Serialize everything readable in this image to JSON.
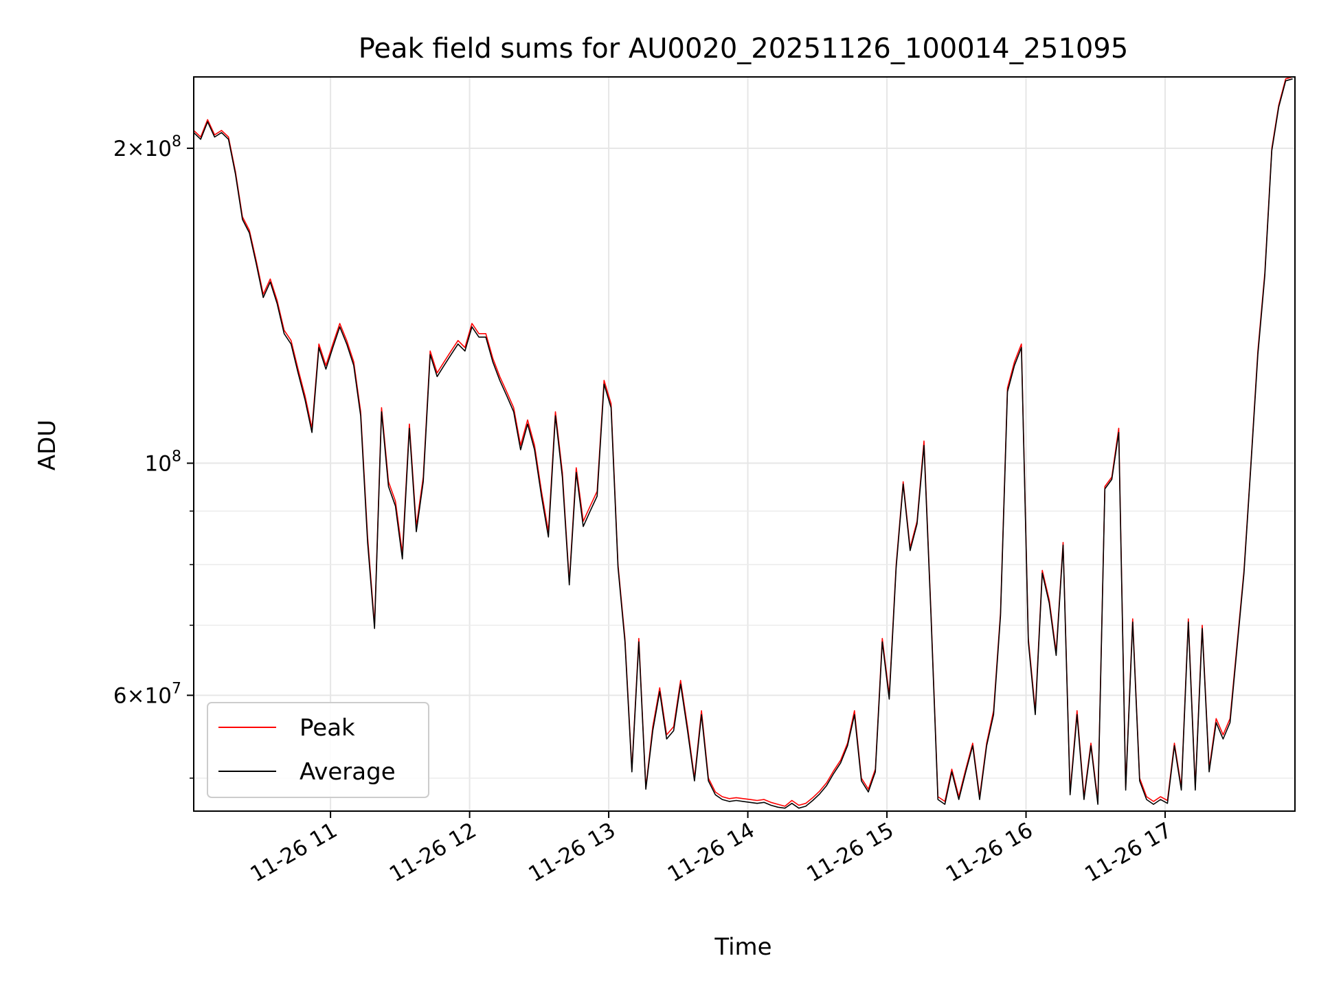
{
  "chart_data": {
    "type": "line",
    "title": "Peak field sums for AU0020_20251126_100014_251095",
    "xlabel": "Time",
    "ylabel": "ADU",
    "y_scale": "log",
    "grid": true,
    "legend_position": "lower-left",
    "xlim": [
      "2025-11-26 10:01",
      "2025-11-26 17:56"
    ],
    "ylim": [
      46500000,
      234000000
    ],
    "x_ticks": [
      {
        "value": "2025-11-26 11:00",
        "label": "11-26 11"
      },
      {
        "value": "2025-11-26 12:00",
        "label": "11-26 12"
      },
      {
        "value": "2025-11-26 13:00",
        "label": "11-26 13"
      },
      {
        "value": "2025-11-26 14:00",
        "label": "11-26 14"
      },
      {
        "value": "2025-11-26 15:00",
        "label": "11-26 15"
      },
      {
        "value": "2025-11-26 16:00",
        "label": "11-26 16"
      },
      {
        "value": "2025-11-26 17:00",
        "label": "11-26 17"
      }
    ],
    "y_major_ticks": [
      {
        "value": 200000000,
        "mantissa": "2",
        "exponent": "8"
      },
      {
        "value": 100000000,
        "mantissa": "",
        "exponent": "8"
      },
      {
        "value": 60000000,
        "mantissa": "6",
        "exponent": "7"
      }
    ],
    "y_minor_ticks": [
      50000000,
      70000000,
      80000000,
      90000000
    ],
    "times": [
      "2025-11-26 10:01",
      "2025-11-26 10:04",
      "2025-11-26 10:07",
      "2025-11-26 10:10",
      "2025-11-26 10:13",
      "2025-11-26 10:16",
      "2025-11-26 10:19",
      "2025-11-26 10:22",
      "2025-11-26 10:25",
      "2025-11-26 10:28",
      "2025-11-26 10:31",
      "2025-11-26 10:34",
      "2025-11-26 10:37",
      "2025-11-26 10:40",
      "2025-11-26 10:43",
      "2025-11-26 10:46",
      "2025-11-26 10:49",
      "2025-11-26 10:52",
      "2025-11-26 10:55",
      "2025-11-26 10:58",
      "2025-11-26 11:01",
      "2025-11-26 11:04",
      "2025-11-26 11:07",
      "2025-11-26 11:10",
      "2025-11-26 11:13",
      "2025-11-26 11:16",
      "2025-11-26 11:19",
      "2025-11-26 11:22",
      "2025-11-26 11:25",
      "2025-11-26 11:28",
      "2025-11-26 11:31",
      "2025-11-26 11:34",
      "2025-11-26 11:37",
      "2025-11-26 11:40",
      "2025-11-26 11:43",
      "2025-11-26 11:46",
      "2025-11-26 11:49",
      "2025-11-26 11:52",
      "2025-11-26 11:55",
      "2025-11-26 11:58",
      "2025-11-26 12:01",
      "2025-11-26 12:04",
      "2025-11-26 12:07",
      "2025-11-26 12:10",
      "2025-11-26 12:13",
      "2025-11-26 12:16",
      "2025-11-26 12:19",
      "2025-11-26 12:22",
      "2025-11-26 12:25",
      "2025-11-26 12:28",
      "2025-11-26 12:31",
      "2025-11-26 12:34",
      "2025-11-26 12:37",
      "2025-11-26 12:40",
      "2025-11-26 12:43",
      "2025-11-26 12:46",
      "2025-11-26 12:49",
      "2025-11-26 12:52",
      "2025-11-26 12:55",
      "2025-11-26 12:58",
      "2025-11-26 13:01",
      "2025-11-26 13:04",
      "2025-11-26 13:07",
      "2025-11-26 13:10",
      "2025-11-26 13:13",
      "2025-11-26 13:16",
      "2025-11-26 13:19",
      "2025-11-26 13:22",
      "2025-11-26 13:25",
      "2025-11-26 13:28",
      "2025-11-26 13:31",
      "2025-11-26 13:34",
      "2025-11-26 13:37",
      "2025-11-26 13:40",
      "2025-11-26 13:43",
      "2025-11-26 13:46",
      "2025-11-26 13:49",
      "2025-11-26 13:52",
      "2025-11-26 13:55",
      "2025-11-26 13:58",
      "2025-11-26 14:01",
      "2025-11-26 14:04",
      "2025-11-26 14:07",
      "2025-11-26 14:10",
      "2025-11-26 14:13",
      "2025-11-26 14:16",
      "2025-11-26 14:19",
      "2025-11-26 14:22",
      "2025-11-26 14:25",
      "2025-11-26 14:28",
      "2025-11-26 14:31",
      "2025-11-26 14:34",
      "2025-11-26 14:37",
      "2025-11-26 14:40",
      "2025-11-26 14:43",
      "2025-11-26 14:46",
      "2025-11-26 14:49",
      "2025-11-26 14:52",
      "2025-11-26 14:55",
      "2025-11-26 14:58",
      "2025-11-26 15:01",
      "2025-11-26 15:04",
      "2025-11-26 15:07",
      "2025-11-26 15:10",
      "2025-11-26 15:13",
      "2025-11-26 15:16",
      "2025-11-26 15:19",
      "2025-11-26 15:22",
      "2025-11-26 15:25",
      "2025-11-26 15:28",
      "2025-11-26 15:31",
      "2025-11-26 15:34",
      "2025-11-26 15:37",
      "2025-11-26 15:40",
      "2025-11-26 15:43",
      "2025-11-26 15:46",
      "2025-11-26 15:49",
      "2025-11-26 15:52",
      "2025-11-26 15:55",
      "2025-11-26 15:58",
      "2025-11-26 16:01",
      "2025-11-26 16:04",
      "2025-11-26 16:07",
      "2025-11-26 16:10",
      "2025-11-26 16:13",
      "2025-11-26 16:16",
      "2025-11-26 16:19",
      "2025-11-26 16:22",
      "2025-11-26 16:25",
      "2025-11-26 16:28",
      "2025-11-26 16:31",
      "2025-11-26 16:34",
      "2025-11-26 16:37",
      "2025-11-26 16:40",
      "2025-11-26 16:43",
      "2025-11-26 16:46",
      "2025-11-26 16:49",
      "2025-11-26 16:52",
      "2025-11-26 16:55",
      "2025-11-26 16:58",
      "2025-11-26 17:01",
      "2025-11-26 17:04",
      "2025-11-26 17:07",
      "2025-11-26 17:10",
      "2025-11-26 17:13",
      "2025-11-26 17:16",
      "2025-11-26 17:19",
      "2025-11-26 17:22",
      "2025-11-26 17:25",
      "2025-11-26 17:28",
      "2025-11-26 17:31",
      "2025-11-26 17:34",
      "2025-11-26 17:37",
      "2025-11-26 17:40",
      "2025-11-26 17:43",
      "2025-11-26 17:46",
      "2025-11-26 17:49",
      "2025-11-26 17:52",
      "2025-11-26 17:55"
    ],
    "series": [
      {
        "name": "Peak",
        "color": "#ff0000",
        "values": [
          208000000,
          205000000,
          213000000,
          206000000,
          208000000,
          205000000,
          190000000,
          172000000,
          167000000,
          156000000,
          145000000,
          150000000,
          143000000,
          134000000,
          131000000,
          123000000,
          116000000,
          108000000,
          130000000,
          124000000,
          130000000,
          136000000,
          131000000,
          125000000,
          112000000,
          85000000,
          70000000,
          113000000,
          96000000,
          92000000,
          82000000,
          109000000,
          87000000,
          97000000,
          128000000,
          122000000,
          125000000,
          128000000,
          131000000,
          129000000,
          136000000,
          133000000,
          133000000,
          126000000,
          121000000,
          117000000,
          113000000,
          104000000,
          110000000,
          104000000,
          94000000,
          86000000,
          112000000,
          98000000,
          77000000,
          99000000,
          88000000,
          91000000,
          94000000,
          120000000,
          114000000,
          80000000,
          68000000,
          51000000,
          68000000,
          49000000,
          56000000,
          61000000,
          55000000,
          56000000,
          62000000,
          56000000,
          50000000,
          58000000,
          50000000,
          48500000,
          48000000,
          47800000,
          47900000,
          47800000,
          47700000,
          47600000,
          47700000,
          47400000,
          47200000,
          47000000,
          47600000,
          47100000,
          47300000,
          47900000,
          48600000,
          49500000,
          50800000,
          52000000,
          54000000,
          58000000,
          50000000,
          48800000,
          51000000,
          68000000,
          60000000,
          80000000,
          96000000,
          83000000,
          88000000,
          105000000,
          72000000,
          48000000,
          47500000,
          51000000,
          48000000,
          51000000,
          54000000,
          48000000,
          54000000,
          58000000,
          72000000,
          118000000,
          125000000,
          130000000,
          68000000,
          58000000,
          79000000,
          74000000,
          66000000,
          84000000,
          48500000,
          58000000,
          48000000,
          54000000,
          47500000,
          95000000,
          97000000,
          108000000,
          49000000,
          71000000,
          50000000,
          48000000,
          47500000,
          48000000,
          47600000,
          54000000,
          49000000,
          71000000,
          49000000,
          70000000,
          51000000,
          57000000,
          55000000,
          57000000,
          67000000,
          79000000,
          100000000,
          128000000,
          152000000,
          200000000,
          220000000,
          233000000,
          234000000
        ]
      },
      {
        "name": "Average",
        "color": "#000000",
        "values": [
          207000000,
          204000000,
          212000000,
          205000000,
          207000000,
          204000000,
          189000000,
          171000000,
          166000000,
          155000000,
          144000000,
          149000000,
          142000000,
          133000000,
          130000000,
          122000000,
          115000000,
          107000000,
          129000000,
          123000000,
          129000000,
          135000000,
          130000000,
          124000000,
          111000000,
          84000000,
          69500000,
          112000000,
          95000000,
          91000000,
          81000000,
          108000000,
          86000000,
          96000000,
          127000000,
          121000000,
          124000000,
          127000000,
          130000000,
          128000000,
          135000000,
          132000000,
          132000000,
          125000000,
          120000000,
          116000000,
          112000000,
          103000000,
          109000000,
          103000000,
          93000000,
          85000000,
          111000000,
          97000000,
          76500000,
          98000000,
          87000000,
          90000000,
          93000000,
          119000000,
          113000000,
          79500000,
          67500000,
          50700000,
          67500000,
          48800000,
          55500000,
          60500000,
          54500000,
          55500000,
          61500000,
          55500000,
          49700000,
          57500000,
          49700000,
          48200000,
          47700000,
          47500000,
          47600000,
          47500000,
          47400000,
          47300000,
          47400000,
          47100000,
          46900000,
          46800000,
          47300000,
          46800000,
          47000000,
          47600000,
          48300000,
          49200000,
          50500000,
          51700000,
          53700000,
          57500000,
          49700000,
          48500000,
          50700000,
          67500000,
          59500000,
          79500000,
          95500000,
          82500000,
          87500000,
          104000000,
          71500000,
          47700000,
          47200000,
          50700000,
          47700000,
          50700000,
          53700000,
          47700000,
          53700000,
          57500000,
          71500000,
          117000000,
          124000000,
          129000000,
          67500000,
          57500000,
          78500000,
          73500000,
          65500000,
          83500000,
          48200000,
          57500000,
          47700000,
          53700000,
          47200000,
          94500000,
          96500000,
          107000000,
          48700000,
          70500000,
          49700000,
          47700000,
          47200000,
          47700000,
          47300000,
          53700000,
          48700000,
          70500000,
          48700000,
          69500000,
          50700000,
          56500000,
          54500000,
          56500000,
          66500000,
          78500000,
          99500000,
          127000000,
          151000000,
          199000000,
          219000000,
          232000000,
          233000000
        ]
      }
    ]
  }
}
